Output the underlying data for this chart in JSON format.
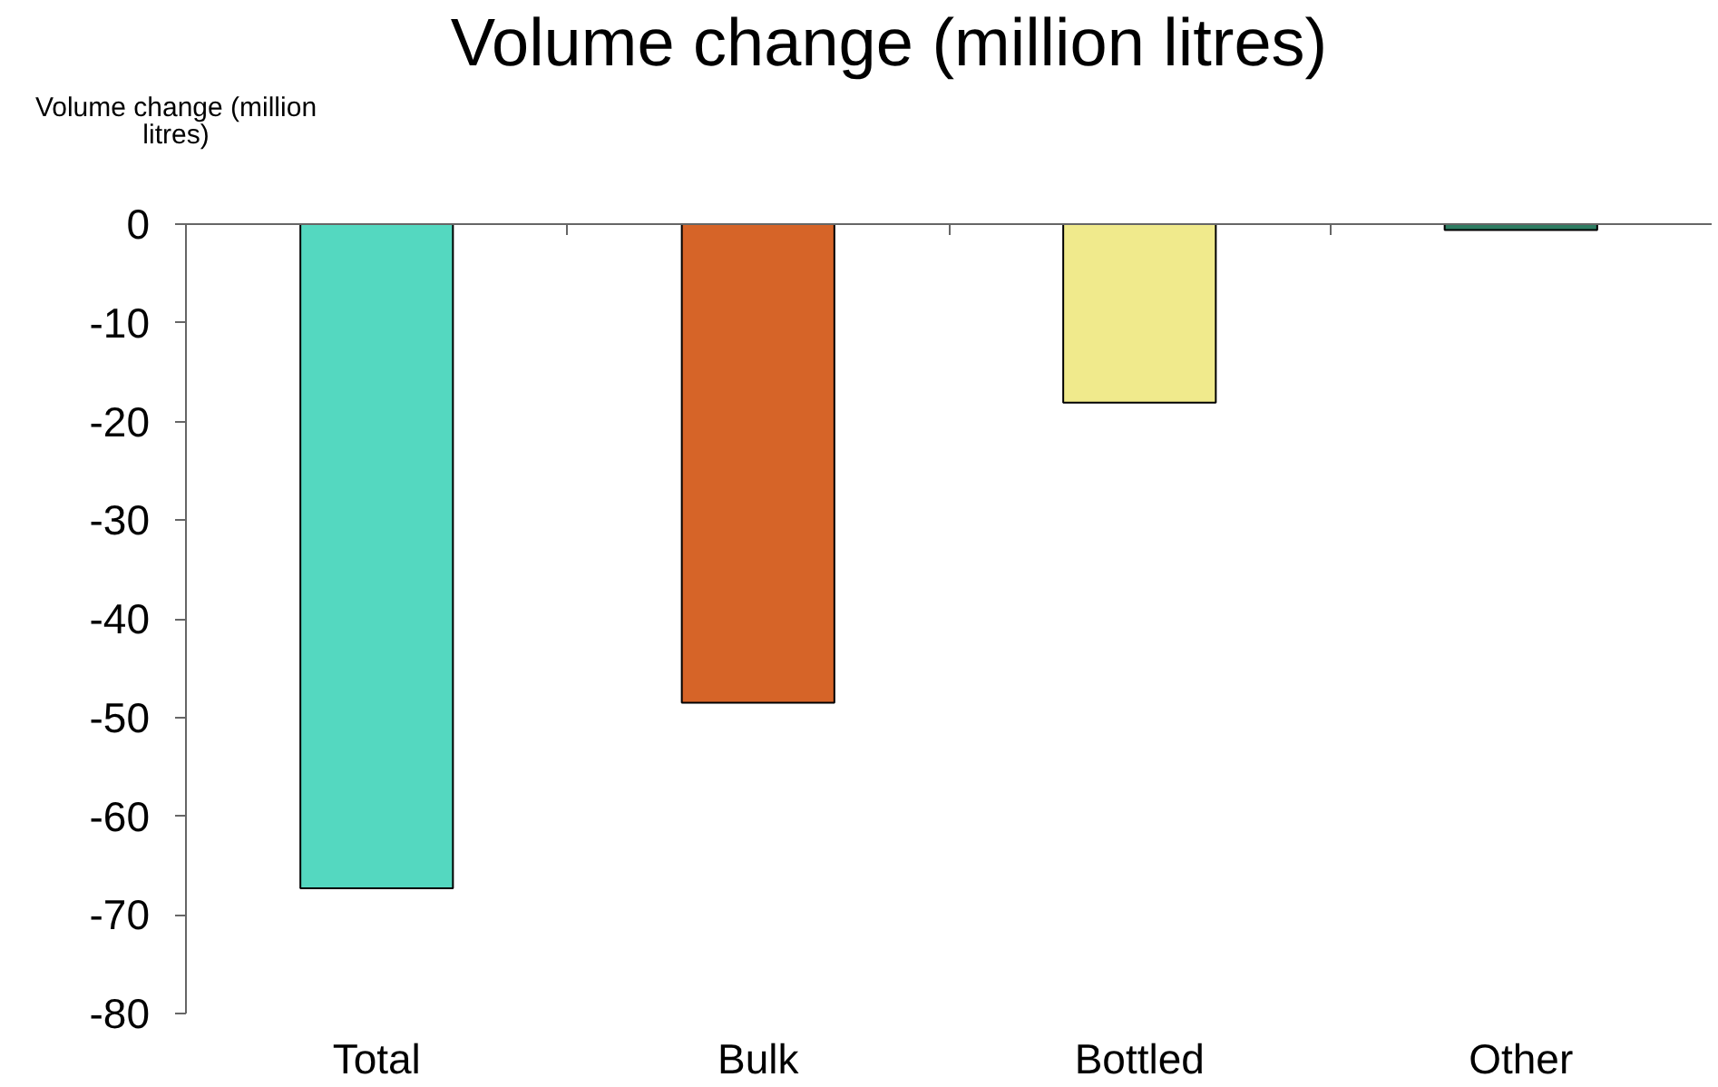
{
  "chart_data": {
    "type": "bar",
    "title": "Volume change (million litres)",
    "ylabel": "Volume change (million litres)",
    "categories": [
      "Total",
      "Bulk",
      "Bottled",
      "Other"
    ],
    "values": [
      -67.3,
      -48.5,
      -18.1,
      -0.6
    ],
    "colors": [
      "#54d8c0",
      "#d66428",
      "#f0ea8c",
      "#2e7d62"
    ],
    "ylim": [
      -80,
      0
    ],
    "yticks": [
      -80,
      -70,
      -60,
      -50,
      -40,
      -30,
      -20,
      -10,
      0
    ],
    "grid": false
  }
}
